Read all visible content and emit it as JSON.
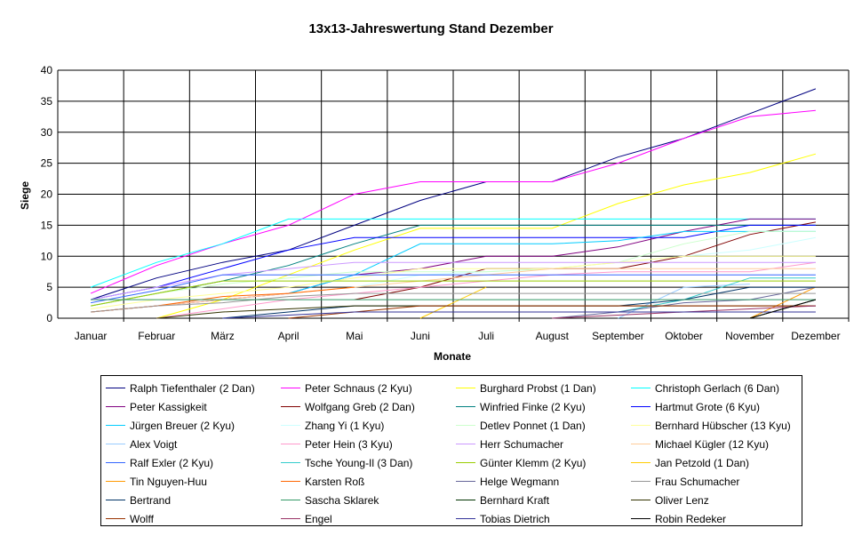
{
  "chart_data": {
    "type": "line",
    "title": "13x13-Jahreswertung Stand Dezember",
    "xlabel": "Monate",
    "ylabel": "Siege",
    "ylim": [
      0,
      40
    ],
    "yticks": [
      "0",
      "5",
      "10",
      "15",
      "20",
      "25",
      "30",
      "35",
      "40"
    ],
    "grid": true,
    "legend_position": "bottom",
    "categories": [
      "Januar",
      "Februar",
      "März",
      "April",
      "Mai",
      "Juni",
      "Juli",
      "August",
      "September",
      "Oktober",
      "November",
      "Dezember"
    ],
    "series": [
      {
        "name": "Ralph Tiefenthaler (2 Dan)",
        "color": "#000080",
        "values": [
          3,
          6.5,
          9,
          11,
          15,
          19,
          22,
          22,
          26,
          29,
          33,
          37
        ]
      },
      {
        "name": "Peter Schnaus (2 Kyu)",
        "color": "#FF00FF",
        "values": [
          4,
          8.5,
          12,
          15,
          20,
          22,
          22,
          22,
          25,
          29,
          32.5,
          33.5
        ]
      },
      {
        "name": "Burghard Probst (1 Dan)",
        "color": "#FFFF00",
        "values": [
          null,
          0,
          3,
          7,
          11,
          14.5,
          14.5,
          14.5,
          18.5,
          21.5,
          23.5,
          26.5
        ]
      },
      {
        "name": "Christoph Gerlach (6 Dan)",
        "color": "#00FFFF",
        "values": [
          5,
          9,
          12,
          16,
          16,
          16,
          16,
          16,
          16,
          16,
          16,
          16
        ]
      },
      {
        "name": "Peter Kassigkeit",
        "color": "#800080",
        "values": [
          1,
          2,
          3,
          4,
          7,
          8,
          10,
          10,
          11.5,
          14,
          16,
          16
        ]
      },
      {
        "name": "Wolfgang Greb (2 Dan)",
        "color": "#800000",
        "values": [
          null,
          null,
          null,
          null,
          3,
          5,
          8,
          8,
          8,
          10,
          13.5,
          15.5
        ]
      },
      {
        "name": "Winfried Finke (2 Kyu)",
        "color": "#008080",
        "values": [
          2,
          4,
          6,
          8.5,
          12,
          15,
          15,
          15,
          15,
          15,
          15,
          15
        ]
      },
      {
        "name": "Hartmut Grote (6 Kyu)",
        "color": "#0000FF",
        "values": [
          3,
          5,
          8,
          11,
          13,
          13,
          13,
          13,
          13,
          13,
          15,
          15
        ]
      },
      {
        "name": "Jürgen Breuer (2 Kyu)",
        "color": "#00CCFF",
        "values": [
          null,
          null,
          null,
          4,
          7,
          12,
          12,
          12,
          12.5,
          14,
          14,
          14
        ]
      },
      {
        "name": "Zhang Yi (1 Kyu)",
        "color": "#CCFFFF",
        "values": [
          null,
          null,
          null,
          null,
          5,
          7,
          7.5,
          8,
          9,
          10,
          11,
          13
        ]
      },
      {
        "name": "Detlev Ponnet (1 Dan)",
        "color": "#CCFFCC",
        "values": [
          2,
          4,
          5.5,
          6.5,
          7.5,
          7.5,
          7.5,
          8,
          9,
          12,
          14,
          14
        ]
      },
      {
        "name": "Bernhard Hübscher (13 Kyu)",
        "color": "#FFFF99",
        "values": [
          1.5,
          3,
          4,
          5,
          6.5,
          8,
          8,
          8,
          9,
          10,
          10,
          10
        ]
      },
      {
        "name": "Alex Voigt",
        "color": "#99CCFF",
        "values": [
          null,
          null,
          null,
          null,
          null,
          null,
          null,
          null,
          0,
          5,
          5.5,
          null
        ]
      },
      {
        "name": "Peter Hein (3 Kyu)",
        "color": "#FF99CC",
        "values": [
          null,
          0,
          1.5,
          3,
          4,
          5,
          6,
          7,
          7.5,
          7.5,
          7.5,
          9
        ]
      },
      {
        "name": "Herr Schumacher",
        "color": "#CC99FF",
        "values": [
          3,
          5,
          7,
          8,
          9,
          9,
          9,
          9,
          9,
          9,
          9,
          9
        ]
      },
      {
        "name": "Michael Kügler (12 Kyu)",
        "color": "#FFCC99",
        "values": [
          1,
          2,
          3,
          4,
          5,
          6,
          7,
          8,
          8,
          8,
          8,
          8
        ]
      },
      {
        "name": "Ralf Exler (2 Kyu)",
        "color": "#3366FF",
        "values": [
          2.5,
          4.5,
          7,
          7,
          7,
          7,
          7,
          7,
          7,
          7,
          7,
          7
        ]
      },
      {
        "name": "Tsche Young-Il (3 Dan)",
        "color": "#33CCCC",
        "values": [
          null,
          null,
          null,
          null,
          null,
          null,
          null,
          null,
          1,
          3,
          6.5,
          6.5
        ]
      },
      {
        "name": "Günter Klemm (2 Kyu)",
        "color": "#99CC00",
        "values": [
          2,
          4,
          6,
          6,
          6,
          6,
          6,
          6,
          6,
          6,
          6,
          6
        ]
      },
      {
        "name": "Jan Petzold (1 Dan)",
        "color": "#FFCC00",
        "values": [
          null,
          null,
          null,
          null,
          null,
          0,
          5,
          null,
          null,
          null,
          null,
          null
        ]
      },
      {
        "name": "Tin Nguyen-Huu",
        "color": "#FF9900",
        "values": [
          null,
          null,
          null,
          null,
          null,
          null,
          null,
          null,
          null,
          null,
          0,
          5
        ]
      },
      {
        "name": "Karsten Roß",
        "color": "#FF6600",
        "values": [
          1,
          2,
          3.5,
          4,
          5,
          null,
          null,
          null,
          null,
          null,
          null,
          null
        ]
      },
      {
        "name": "Helge Wegmann",
        "color": "#666699",
        "values": [
          null,
          null,
          null,
          null,
          null,
          null,
          null,
          0,
          1,
          2.5,
          3,
          5
        ]
      },
      {
        "name": "Frau Schumacher",
        "color": "#969696",
        "values": [
          1,
          2,
          2.5,
          3.5,
          4,
          4,
          4,
          4,
          4,
          4,
          4,
          4
        ]
      },
      {
        "name": "Bertrand",
        "color": "#003366",
        "values": [
          null,
          null,
          0,
          1,
          2,
          2,
          2,
          2,
          2,
          3,
          5,
          5
        ]
      },
      {
        "name": "Sascha Sklarek",
        "color": "#339966",
        "values": [
          3,
          3,
          3,
          3,
          3,
          3,
          3,
          3,
          3,
          3,
          3,
          3
        ]
      },
      {
        "name": "Bernhard Kraft",
        "color": "#003300",
        "values": [
          null,
          null,
          null,
          null,
          null,
          null,
          null,
          null,
          null,
          null,
          0,
          3
        ]
      },
      {
        "name": "Oliver Lenz",
        "color": "#333300",
        "values": [
          null,
          0,
          1,
          1.5,
          2,
          2,
          2,
          2,
          2,
          2,
          2,
          2
        ]
      },
      {
        "name": "Wolff",
        "color": "#993300",
        "values": [
          null,
          null,
          null,
          0,
          1,
          2,
          2,
          2,
          2,
          2,
          2,
          2
        ]
      },
      {
        "name": "Engel",
        "color": "#993366",
        "values": [
          null,
          null,
          null,
          null,
          null,
          null,
          null,
          0,
          0.5,
          1,
          1.5,
          2
        ]
      },
      {
        "name": "Tobias Dietrich",
        "color": "#333399",
        "values": [
          null,
          null,
          0,
          0.5,
          1,
          1,
          1,
          1,
          1,
          1,
          1,
          1
        ]
      },
      {
        "name": "Robin Redeker",
        "color": "#000000",
        "values": [
          null,
          null,
          null,
          null,
          null,
          null,
          null,
          null,
          null,
          null,
          0,
          3
        ]
      }
    ]
  }
}
